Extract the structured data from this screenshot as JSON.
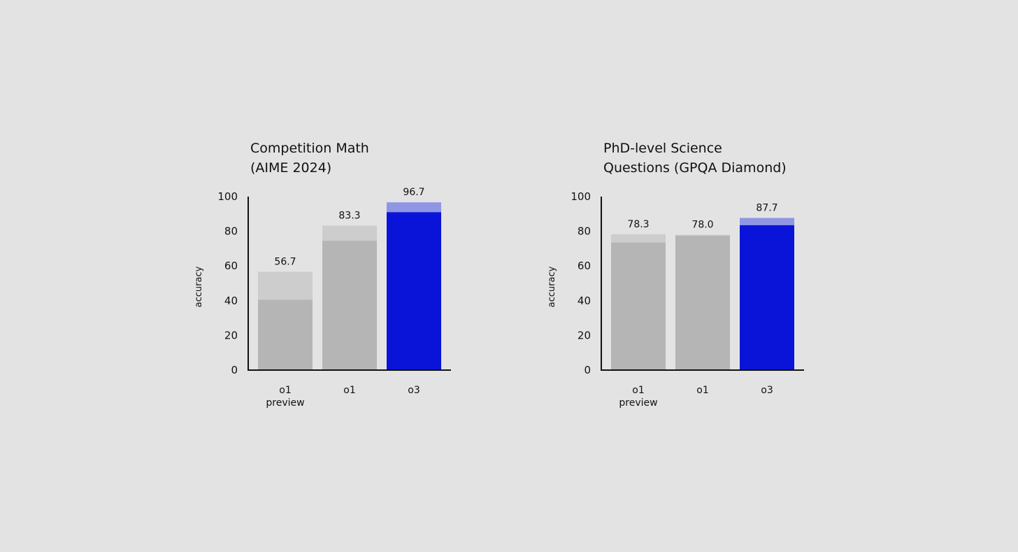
{
  "chart_data": [
    {
      "type": "bar",
      "title_lines": [
        "Competition Math",
        "(AIME 2024)"
      ],
      "ylabel": "accuracy",
      "ylim": [
        0,
        100
      ],
      "yticks": [
        "0",
        "20",
        "40",
        "60",
        "80",
        "100"
      ],
      "categories": [
        [
          "o1",
          "preview"
        ],
        [
          "o1"
        ],
        [
          "o3"
        ]
      ],
      "series": [
        {
          "values": [
            40.5,
            74.5,
            91.0
          ]
        },
        {
          "values": [
            56.7,
            83.3,
            96.7
          ]
        }
      ],
      "data_labels": [
        "56.7",
        "83.3",
        "96.7"
      ],
      "grid": false
    },
    {
      "type": "bar",
      "title_lines": [
        "PhD-level Science",
        "Questions (GPQA Diamond)"
      ],
      "ylabel": "accuracy",
      "ylim": [
        0,
        100
      ],
      "yticks": [
        "0",
        "20",
        "40",
        "60",
        "80",
        "100"
      ],
      "categories": [
        [
          "o1",
          "preview"
        ],
        [
          "o1"
        ],
        [
          "o3"
        ]
      ],
      "series": [
        {
          "values": [
            73.5,
            77.5,
            83.5
          ]
        },
        {
          "values": [
            78.3,
            78.0,
            87.7
          ]
        }
      ],
      "data_labels": [
        "78.3",
        "78.0",
        "87.7"
      ],
      "grid": false
    }
  ],
  "colors": {
    "background": "#e3e3e3",
    "gray_solid": "#b5b5b5",
    "gray_light": "#cdcdcd",
    "highlight_solid": "#0a14d9",
    "highlight_light": "#8f97e4",
    "axis": "#111111"
  },
  "highlight_category_index": 2
}
